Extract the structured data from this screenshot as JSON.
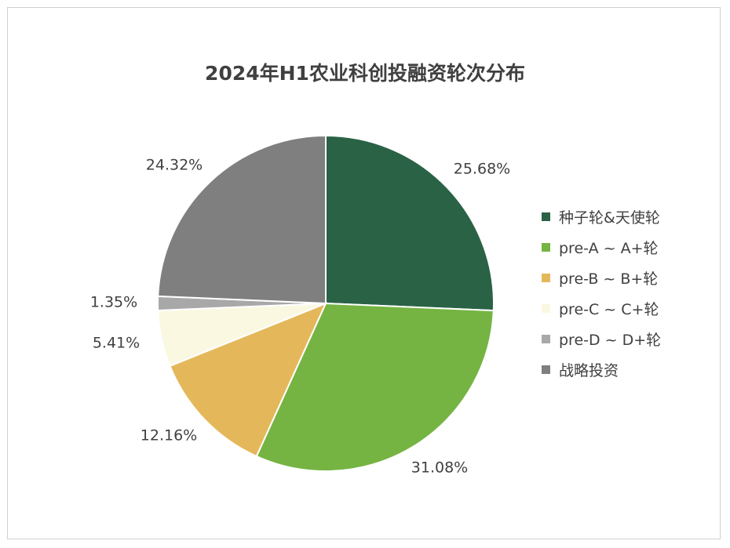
{
  "title": "2024年H1农业科创投融资轮次分布",
  "chart_data": {
    "type": "pie",
    "title": "2024年H1农业科创投融资轮次分布",
    "categories": [
      "种子轮&天使轮",
      "pre-A ~ A+轮",
      "pre-B ~ B+轮",
      "pre-C ~ C+轮",
      "pre-D ~ D+轮",
      "战略投资"
    ],
    "values": [
      25.68,
      31.08,
      12.16,
      5.41,
      1.35,
      24.32
    ],
    "labels": [
      "25.68%",
      "31.08%",
      "12.16%",
      "5.41%",
      "1.35%",
      "24.32%"
    ],
    "colors": [
      "#2a6246",
      "#75b443",
      "#e4b85a",
      "#fbf8e1",
      "#a8a8a8",
      "#7f7f7f"
    ],
    "legend": "right",
    "start_angle": "12 o'clock",
    "direction": "clockwise"
  }
}
